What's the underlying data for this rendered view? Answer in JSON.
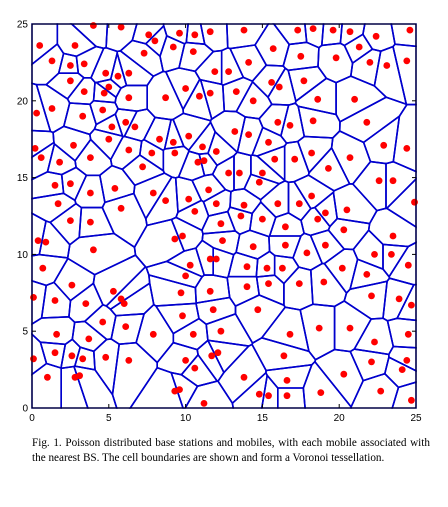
{
  "figure": {
    "caption": "Fig. 1.   Poisson distributed base stations and mobiles, with each mobile associated with the nearest BS. The cell boundaries are shown and form a Voronoi tessellation."
  },
  "chart_data": {
    "type": "scatter",
    "title": "",
    "xlabel": "",
    "ylabel": "",
    "xlim": [
      0,
      25
    ],
    "ylim": [
      0,
      25
    ],
    "xticks": [
      "0",
      "5",
      "10",
      "15",
      "20",
      "25"
    ],
    "yticks": [
      "0",
      "5",
      "10",
      "15",
      "20",
      "25"
    ],
    "grid": false,
    "legend": "none",
    "series": [
      {
        "marker": "dot",
        "color": "#ff0000",
        "points": [
          [
            0.5,
            23.6
          ],
          [
            2.8,
            23.6
          ],
          [
            4.0,
            24.9
          ],
          [
            5.8,
            24.8
          ],
          [
            7.6,
            24.3
          ],
          [
            8.0,
            23.9
          ],
          [
            9.6,
            24.4
          ],
          [
            10.6,
            24.3
          ],
          [
            11.6,
            24.5
          ],
          [
            13.8,
            24.6
          ],
          [
            17.3,
            24.6
          ],
          [
            18.3,
            24.7
          ],
          [
            19.6,
            24.6
          ],
          [
            20.7,
            24.5
          ],
          [
            22.4,
            24.2
          ],
          [
            24.6,
            24.6
          ],
          [
            1.3,
            22.6
          ],
          [
            2.5,
            22.3
          ],
          [
            3.4,
            22.4
          ],
          [
            4.8,
            21.8
          ],
          [
            5.6,
            21.6
          ],
          [
            6.3,
            21.8
          ],
          [
            7.3,
            23.1
          ],
          [
            9.2,
            23.5
          ],
          [
            10.5,
            23.2
          ],
          [
            11.9,
            21.9
          ],
          [
            12.8,
            21.9
          ],
          [
            14.1,
            22.5
          ],
          [
            15.7,
            23.4
          ],
          [
            17.5,
            22.9
          ],
          [
            19.8,
            22.8
          ],
          [
            21.3,
            23.5
          ],
          [
            22.0,
            22.5
          ],
          [
            23.1,
            22.3
          ],
          [
            24.4,
            22.6
          ],
          [
            2.5,
            21.3
          ],
          [
            3.4,
            20.6
          ],
          [
            4.7,
            20.5
          ],
          [
            5.0,
            20.9
          ],
          [
            6.3,
            20.2
          ],
          [
            8.7,
            20.2
          ],
          [
            10.0,
            20.8
          ],
          [
            10.9,
            20.3
          ],
          [
            11.6,
            20.5
          ],
          [
            13.3,
            20.6
          ],
          [
            14.4,
            20.0
          ],
          [
            15.6,
            21.2
          ],
          [
            16.1,
            20.9
          ],
          [
            17.7,
            21.3
          ],
          [
            18.6,
            20.1
          ],
          [
            21.0,
            20.1
          ],
          [
            0.3,
            19.2
          ],
          [
            1.3,
            19.5
          ],
          [
            3.3,
            19.0
          ],
          [
            4.6,
            19.4
          ],
          [
            5.2,
            18.3
          ],
          [
            6.1,
            18.6
          ],
          [
            6.7,
            18.3
          ],
          [
            8.3,
            17.5
          ],
          [
            9.2,
            17.3
          ],
          [
            10.2,
            17.7
          ],
          [
            11.1,
            17.0
          ],
          [
            13.2,
            18.0
          ],
          [
            14.1,
            17.8
          ],
          [
            15.4,
            17.3
          ],
          [
            16.0,
            18.6
          ],
          [
            16.8,
            18.4
          ],
          [
            18.3,
            18.7
          ],
          [
            21.8,
            18.6
          ],
          [
            22.9,
            17.1
          ],
          [
            24.4,
            16.9
          ],
          [
            0.2,
            16.9
          ],
          [
            0.6,
            16.3
          ],
          [
            1.8,
            16.0
          ],
          [
            2.7,
            17.1
          ],
          [
            3.8,
            16.3
          ],
          [
            5.0,
            17.5
          ],
          [
            6.3,
            16.8
          ],
          [
            7.2,
            15.7
          ],
          [
            7.8,
            16.6
          ],
          [
            9.3,
            16.6
          ],
          [
            10.8,
            16.0
          ],
          [
            11.2,
            16.1
          ],
          [
            12.0,
            16.7
          ],
          [
            13.5,
            15.3
          ],
          [
            15.0,
            15.3
          ],
          [
            15.8,
            16.2
          ],
          [
            17.1,
            16.2
          ],
          [
            18.2,
            16.6
          ],
          [
            19.3,
            15.6
          ],
          [
            20.7,
            16.3
          ],
          [
            22.6,
            14.8
          ],
          [
            23.5,
            14.8
          ],
          [
            1.5,
            14.5
          ],
          [
            2.5,
            14.6
          ],
          [
            3.8,
            14.0
          ],
          [
            1.7,
            13.3
          ],
          [
            5.4,
            14.3
          ],
          [
            7.9,
            14.0
          ],
          [
            8.7,
            13.5
          ],
          [
            10.2,
            13.6
          ],
          [
            11.5,
            14.2
          ],
          [
            12.0,
            13.3
          ],
          [
            12.8,
            15.3
          ],
          [
            13.8,
            13.2
          ],
          [
            14.8,
            14.7
          ],
          [
            16.0,
            13.3
          ],
          [
            17.4,
            13.3
          ],
          [
            18.2,
            13.8
          ],
          [
            19.1,
            12.7
          ],
          [
            20.5,
            12.9
          ],
          [
            24.9,
            13.4
          ],
          [
            2.5,
            12.2
          ],
          [
            3.8,
            12.1
          ],
          [
            5.8,
            13.0
          ],
          [
            9.3,
            11.0
          ],
          [
            10.6,
            12.8
          ],
          [
            12.3,
            12.0
          ],
          [
            13.6,
            12.5
          ],
          [
            15.0,
            12.3
          ],
          [
            16.5,
            11.8
          ],
          [
            18.6,
            12.3
          ],
          [
            20.3,
            11.6
          ],
          [
            23.5,
            11.2
          ],
          [
            0.4,
            10.9
          ],
          [
            0.9,
            10.8
          ],
          [
            4.0,
            10.3
          ],
          [
            9.8,
            11.2
          ],
          [
            12.4,
            10.9
          ],
          [
            12.0,
            9.7
          ],
          [
            14.4,
            10.5
          ],
          [
            16.5,
            10.6
          ],
          [
            17.9,
            10.1
          ],
          [
            19.1,
            10.6
          ],
          [
            22.3,
            10.0
          ],
          [
            23.4,
            10.0
          ],
          [
            0.7,
            9.1
          ],
          [
            10.3,
            9.3
          ],
          [
            10.0,
            8.6
          ],
          [
            11.6,
            9.7
          ],
          [
            14.0,
            9.2
          ],
          [
            15.3,
            9.1
          ],
          [
            16.3,
            9.1
          ],
          [
            20.2,
            9.1
          ],
          [
            21.8,
            8.7
          ],
          [
            24.5,
            9.3
          ],
          [
            2.6,
            8.0
          ],
          [
            1.5,
            7.0
          ],
          [
            3.5,
            6.8
          ],
          [
            5.3,
            7.6
          ],
          [
            5.8,
            7.1
          ],
          [
            6.0,
            6.8
          ],
          [
            9.7,
            7.5
          ],
          [
            11.6,
            7.6
          ],
          [
            14.0,
            7.9
          ],
          [
            15.4,
            8.1
          ],
          [
            17.4,
            8.1
          ],
          [
            19.0,
            8.2
          ],
          [
            22.1,
            7.3
          ],
          [
            23.9,
            7.1
          ],
          [
            0.1,
            7.2
          ],
          [
            24.7,
            6.7
          ],
          [
            4.6,
            5.6
          ],
          [
            6.1,
            5.3
          ],
          [
            9.8,
            6.0
          ],
          [
            11.8,
            6.4
          ],
          [
            14.7,
            6.4
          ],
          [
            18.7,
            5.2
          ],
          [
            20.7,
            5.2
          ],
          [
            22.3,
            4.3
          ],
          [
            1.6,
            4.8
          ],
          [
            3.7,
            4.5
          ],
          [
            7.9,
            4.8
          ],
          [
            10.5,
            4.8
          ],
          [
            12.3,
            5.0
          ],
          [
            16.8,
            4.8
          ],
          [
            24.5,
            4.8
          ],
          [
            1.5,
            3.6
          ],
          [
            2.6,
            3.4
          ],
          [
            3.3,
            3.2
          ],
          [
            4.8,
            3.3
          ],
          [
            6.3,
            3.1
          ],
          [
            10.0,
            3.1
          ],
          [
            11.7,
            3.4
          ],
          [
            12.1,
            3.6
          ],
          [
            16.4,
            3.4
          ],
          [
            22.1,
            3.0
          ],
          [
            24.4,
            3.1
          ],
          [
            0.1,
            3.2
          ],
          [
            1.0,
            2.0
          ],
          [
            2.8,
            2.0
          ],
          [
            3.1,
            2.1
          ],
          [
            10.6,
            2.6
          ],
          [
            13.8,
            2.0
          ],
          [
            16.6,
            1.8
          ],
          [
            20.3,
            2.2
          ],
          [
            24.1,
            2.5
          ],
          [
            9.3,
            1.1
          ],
          [
            9.6,
            1.2
          ],
          [
            14.8,
            0.9
          ],
          [
            15.4,
            0.8
          ],
          [
            16.6,
            0.8
          ],
          [
            18.8,
            1.0
          ],
          [
            22.7,
            1.1
          ],
          [
            24.7,
            0.5
          ],
          [
            11.2,
            0.3
          ]
        ]
      }
    ]
  }
}
